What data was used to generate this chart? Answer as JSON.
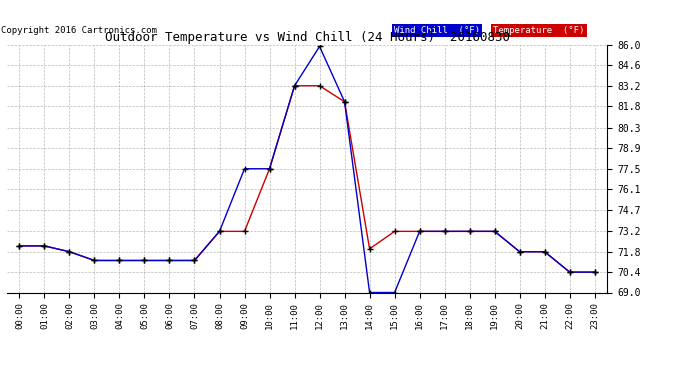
{
  "title": "Outdoor Temperature vs Wind Chill (24 Hours)  20160830",
  "copyright": "Copyright 2016 Cartronics.com",
  "x_labels": [
    "00:00",
    "01:00",
    "02:00",
    "03:00",
    "04:00",
    "05:00",
    "06:00",
    "07:00",
    "08:00",
    "09:00",
    "10:00",
    "11:00",
    "12:00",
    "13:00",
    "14:00",
    "15:00",
    "16:00",
    "17:00",
    "18:00",
    "19:00",
    "20:00",
    "21:00",
    "22:00",
    "23:00"
  ],
  "temperature": [
    72.2,
    72.2,
    71.8,
    71.2,
    71.2,
    71.2,
    71.2,
    71.2,
    73.2,
    73.2,
    77.5,
    83.2,
    83.2,
    82.1,
    72.0,
    73.2,
    73.2,
    73.2,
    73.2,
    73.2,
    71.8,
    71.8,
    70.4,
    70.4
  ],
  "wind_chill": [
    72.2,
    72.2,
    71.8,
    71.2,
    71.2,
    71.2,
    71.2,
    71.2,
    73.2,
    77.5,
    77.5,
    83.2,
    85.9,
    82.1,
    69.0,
    69.0,
    73.2,
    73.2,
    73.2,
    73.2,
    71.8,
    71.8,
    70.4,
    70.4
  ],
  "ylim": [
    69.0,
    86.0
  ],
  "yticks": [
    69.0,
    70.4,
    71.8,
    73.2,
    74.7,
    76.1,
    77.5,
    78.9,
    80.3,
    81.8,
    83.2,
    84.6,
    86.0
  ],
  "temp_color": "#cc0000",
  "wind_chill_color": "#0000cc",
  "background_color": "#ffffff",
  "grid_color": "#aaaaaa",
  "legend_wind_bg": "#0000cc",
  "legend_temp_bg": "#cc0000",
  "legend_wind_text": "Wind Chill  (°F)",
  "legend_temp_text": "Temperature  (°F)",
  "marker": "+",
  "markersize": 5
}
